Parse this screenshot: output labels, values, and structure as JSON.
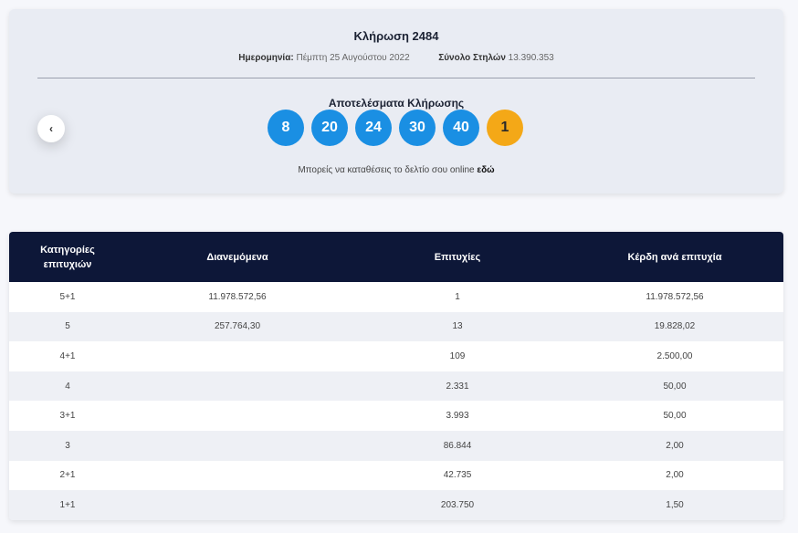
{
  "draw": {
    "title": "Κλήρωση 2484",
    "date_label": "Ημερομηνία:",
    "date_value": "Πέμπτη 25 Αυγούστου 2022",
    "columns_label": "Σύνολο Στηλών",
    "columns_value": "13.390.353",
    "results_title": "Αποτελέσματα Κλήρωσης",
    "numbers": [
      "8",
      "20",
      "24",
      "30",
      "40"
    ],
    "joker": "1",
    "prev_icon": "chevron-left-icon",
    "prev_glyph": "‹",
    "online_text": "Μπορείς να καταθέσεις το δελτίο σου online ",
    "online_link": "εδώ"
  },
  "colors": {
    "ball": "#1a8fe3",
    "joker": "#f4a817",
    "table_header": "#0d1738"
  },
  "table": {
    "headers": [
      "Κατηγορίες επιτυχιών",
      "Διανεμόμενα",
      "Επιτυχίες",
      "Κέρδη ανά επιτυχία"
    ],
    "rows": [
      [
        "5+1",
        "11.978.572,56",
        "1",
        "11.978.572,56"
      ],
      [
        "5",
        "257.764,30",
        "13",
        "19.828,02"
      ],
      [
        "4+1",
        "",
        "109",
        "2.500,00"
      ],
      [
        "4",
        "",
        "2.331",
        "50,00"
      ],
      [
        "3+1",
        "",
        "3.993",
        "50,00"
      ],
      [
        "3",
        "",
        "86.844",
        "2,00"
      ],
      [
        "2+1",
        "",
        "42.735",
        "2,00"
      ],
      [
        "1+1",
        "",
        "203.750",
        "1,50"
      ]
    ]
  }
}
